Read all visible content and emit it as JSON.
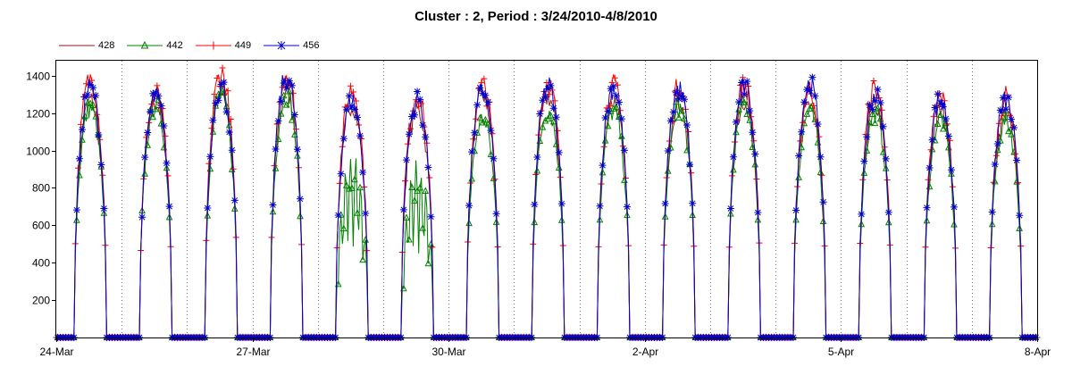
{
  "chart_data": {
    "type": "line",
    "title": "Cluster : 2, Period : 3/24/2010-4/8/2010",
    "xlabel": "",
    "ylabel": "",
    "x_range": [
      "2010-03-24",
      "2010-04-08"
    ],
    "x_ticks": [
      "24-Mar",
      "27-Mar",
      "30-Mar",
      "2-Apr",
      "5-Apr",
      "8-Apr"
    ],
    "ylim": [
      0,
      1480
    ],
    "y_ticks": [
      200,
      400,
      600,
      800,
      1000,
      1200,
      1400
    ],
    "grid": "vertical dotted lines at day boundaries",
    "legend_position": "top-left",
    "series": [
      {
        "name": "428",
        "color": "#8b1a1a",
        "marker": "none"
      },
      {
        "name": "442",
        "color": "#008000",
        "marker": "triangle"
      },
      {
        "name": "449",
        "color": "#ff0000",
        "marker": "plus"
      },
      {
        "name": "456",
        "color": "#0000cc",
        "marker": "star"
      }
    ],
    "daily_peaks": [
      {
        "date": "2010-03-24",
        "s428": 1300,
        "s442": 1260,
        "s449": 1420,
        "s456": 1370
      },
      {
        "date": "2010-03-25",
        "s428": 1290,
        "s442": 1280,
        "s449": 1340,
        "s456": 1320
      },
      {
        "date": "2010-03-26",
        "s428": 1360,
        "s442": 1330,
        "s449": 1450,
        "s456": 1380
      },
      {
        "date": "2010-03-27",
        "s428": 1350,
        "s442": 1330,
        "s449": 1450,
        "s456": 1430
      },
      {
        "date": "2010-03-28",
        "s428": 1280,
        "s442": 1000,
        "s449": 1360,
        "s456": 1300
      },
      {
        "date": "2010-03-29",
        "s428": 1250,
        "s442": 950,
        "s449": 1330,
        "s456": 1300
      },
      {
        "date": "2010-03-30",
        "s428": 1330,
        "s442": 1200,
        "s449": 1380,
        "s456": 1350
      },
      {
        "date": "2010-03-31",
        "s428": 1320,
        "s442": 1250,
        "s449": 1400,
        "s456": 1380
      },
      {
        "date": "2010-04-01",
        "s428": 1300,
        "s442": 1240,
        "s449": 1380,
        "s456": 1370
      },
      {
        "date": "2010-04-02",
        "s428": 1290,
        "s442": 1260,
        "s449": 1380,
        "s456": 1360
      },
      {
        "date": "2010-04-03",
        "s428": 1300,
        "s442": 1280,
        "s449": 1380,
        "s456": 1370
      },
      {
        "date": "2010-04-04",
        "s428": 1290,
        "s442": 1240,
        "s449": 1360,
        "s456": 1390
      },
      {
        "date": "2010-04-05",
        "s428": 1270,
        "s442": 1230,
        "s449": 1370,
        "s456": 1330
      },
      {
        "date": "2010-04-06",
        "s428": 1240,
        "s442": 1200,
        "s449": 1320,
        "s456": 1310
      },
      {
        "date": "2010-04-07",
        "s428": 1230,
        "s442": 1190,
        "s449": 1320,
        "s456": 1300
      }
    ]
  }
}
